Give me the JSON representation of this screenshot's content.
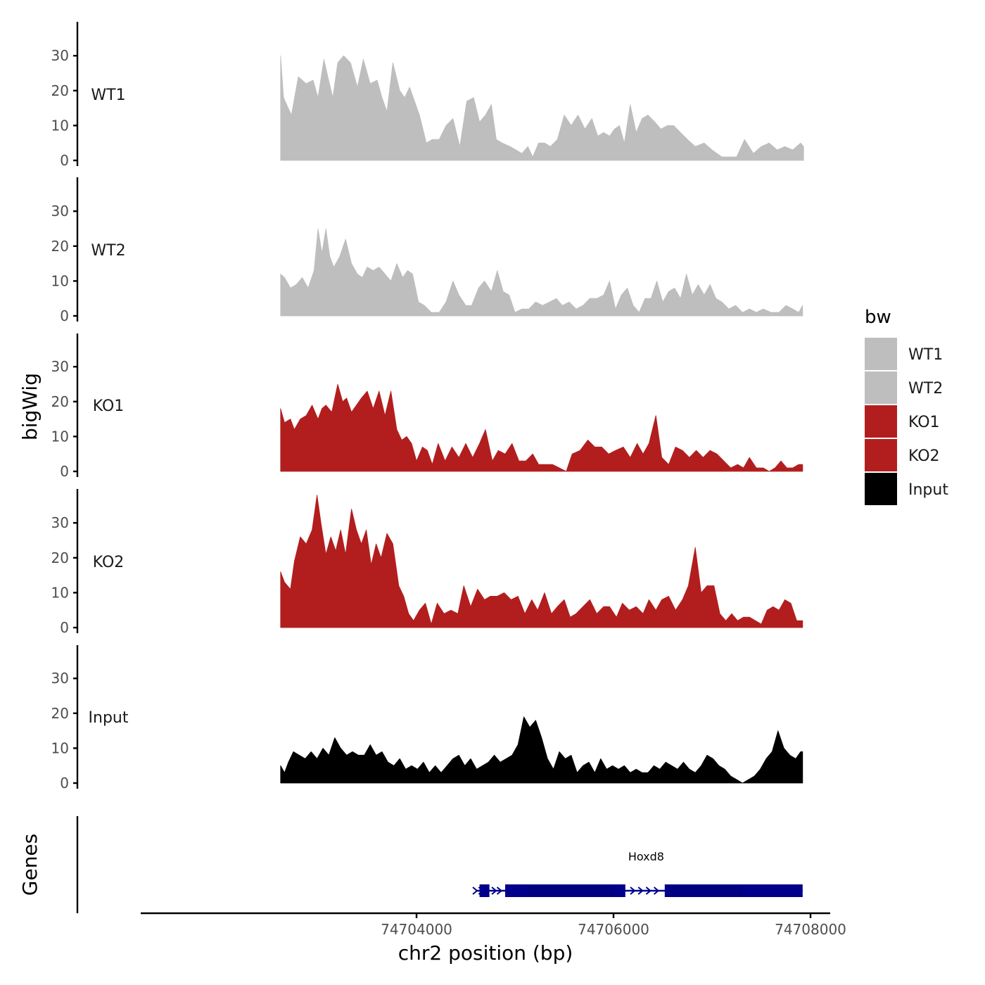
{
  "chart_data": {
    "type": "area",
    "title": "",
    "ylabel": "bigWig",
    "xlabel": "chr2 position (bp)",
    "genes_label": "Genes",
    "xlim": [
      74701200,
      74708200
    ],
    "ylim": [
      0,
      40
    ],
    "yticks": [
      0,
      10,
      20,
      30
    ],
    "xticks": [
      74704000,
      74706000,
      74708000
    ],
    "xtick_labels": [
      "74704000",
      "74706000",
      "74708000"
    ],
    "legend": {
      "title": "bw",
      "position": "right",
      "entries": [
        {
          "name": "WT1",
          "color": "#bebebe"
        },
        {
          "name": "WT2",
          "color": "#bebebe"
        },
        {
          "name": "KO1",
          "color": "#b21e1e"
        },
        {
          "name": "KO2",
          "color": "#b21e1e"
        },
        {
          "name": "Input",
          "color": "#000000"
        }
      ]
    },
    "series": [
      {
        "name": "WT1",
        "color": "#bebebe",
        "x": [
          74702620,
          74702650,
          74702730,
          74702800,
          74702880,
          74702950,
          74703000,
          74703060,
          74703100,
          74703150,
          74703200,
          74703260,
          74703330,
          74703400,
          74703460,
          74703530,
          74703600,
          74703650,
          74703700,
          74703760,
          74703830,
          74703880,
          74703930,
          74703980,
          74704030,
          74704100,
          74704160,
          74704230,
          74704300,
          74704370,
          74704440,
          74704510,
          74704580,
          74704640,
          74704700,
          74704760,
          74704810,
          74704870,
          74704950,
          74705010,
          74705070,
          74705130,
          74705180,
          74705240,
          74705300,
          74705360,
          74705430,
          74705500,
          74705570,
          74705640,
          74705710,
          74705780,
          74705840,
          74705900,
          74705960,
          74706010,
          74706060,
          74706110,
          74706170,
          74706230,
          74706290,
          74706350,
          74706420,
          74706480,
          74706550,
          74706610,
          74706680,
          74706750,
          74706830,
          74706920,
          74707000,
          74707100,
          74707180,
          74707250,
          74707330,
          74707420,
          74707500,
          74707580,
          74707660,
          74707740,
          74707820,
          74707900,
          74707930
        ],
        "y": [
          30,
          18,
          13,
          24,
          22,
          23,
          18,
          29,
          24,
          18,
          28,
          30,
          28,
          21,
          29,
          22,
          23,
          18,
          14,
          28,
          20,
          18,
          21,
          17,
          13,
          5,
          6,
          6,
          10,
          12,
          4,
          17,
          18,
          11,
          13,
          16,
          6,
          5,
          4,
          3,
          2,
          4,
          1,
          5,
          5,
          4,
          6,
          13,
          10,
          13,
          9,
          12,
          7,
          8,
          7,
          9,
          10,
          5,
          16,
          8,
          12,
          13,
          11,
          9,
          10,
          10,
          8,
          6,
          4,
          5,
          3,
          1,
          1,
          1,
          6,
          2,
          4,
          5,
          3,
          4,
          3,
          5,
          4
        ]
      },
      {
        "name": "WT2",
        "color": "#bebebe",
        "x": [
          74702620,
          74702660,
          74702720,
          74702780,
          74702840,
          74702900,
          74702960,
          74703000,
          74703040,
          74703080,
          74703120,
          74703160,
          74703220,
          74703280,
          74703340,
          74703400,
          74703450,
          74703500,
          74703560,
          74703620,
          74703680,
          74703740,
          74703800,
          74703860,
          74703910,
          74703960,
          74704020,
          74704080,
          74704150,
          74704230,
          74704300,
          74704370,
          74704430,
          74704500,
          74704560,
          74704630,
          74704690,
          74704760,
          74704820,
          74704880,
          74704940,
          74705000,
          74705070,
          74705140,
          74705210,
          74705280,
          74705350,
          74705420,
          74705480,
          74705550,
          74705620,
          74705690,
          74705760,
          74705830,
          74705900,
          74705960,
          74706020,
          74706080,
          74706140,
          74706200,
          74706260,
          74706320,
          74706380,
          74706440,
          74706500,
          74706560,
          74706620,
          74706680,
          74706740,
          74706800,
          74706860,
          74706920,
          74706980,
          74707040,
          74707100,
          74707170,
          74707240,
          74707310,
          74707380,
          74707450,
          74707520,
          74707600,
          74707680,
          74707750,
          74707820,
          74707880,
          74707920
        ],
        "y": [
          12,
          11,
          8,
          9,
          11,
          8,
          13,
          25,
          18,
          25,
          17,
          14,
          17,
          22,
          15,
          12,
          11,
          14,
          13,
          14,
          12,
          10,
          15,
          11,
          13,
          12,
          4,
          3,
          1,
          1,
          4,
          10,
          6,
          3,
          3,
          8,
          10,
          7,
          13,
          7,
          6,
          1,
          2,
          2,
          4,
          3,
          4,
          5,
          3,
          4,
          2,
          3,
          5,
          5,
          6,
          10,
          2,
          6,
          8,
          3,
          1,
          5,
          5,
          10,
          4,
          7,
          8,
          5,
          12,
          6,
          9,
          6,
          9,
          5,
          4,
          2,
          3,
          1,
          2,
          1,
          2,
          1,
          1,
          3,
          2,
          1,
          3
        ]
      },
      {
        "name": "KO1",
        "color": "#b21e1e",
        "x": [
          74702620,
          74702660,
          74702720,
          74702760,
          74702820,
          74702880,
          74702940,
          74703000,
          74703040,
          74703080,
          74703140,
          74703200,
          74703250,
          74703290,
          74703340,
          74703390,
          74703440,
          74703500,
          74703560,
          74703620,
          74703680,
          74703740,
          74703800,
          74703850,
          74703900,
          74703950,
          74704000,
          74704060,
          74704110,
          74704160,
          74704220,
          74704290,
          74704360,
          74704430,
          74704500,
          74704570,
          74704640,
          74704700,
          74704770,
          74704830,
          74704900,
          74704970,
          74705040,
          74705110,
          74705180,
          74705240,
          74705310,
          74705380,
          74705450,
          74705520,
          74705580,
          74705660,
          74705740,
          74705810,
          74705880,
          74705950,
          74706020,
          74706100,
          74706170,
          74706240,
          74706300,
          74706360,
          74706430,
          74706490,
          74706560,
          74706630,
          74706700,
          74706770,
          74706840,
          74706910,
          74706980,
          74707050,
          74707120,
          74707190,
          74707260,
          74707320,
          74707380,
          74707450,
          74707520,
          74707580,
          74707640,
          74707700,
          74707760,
          74707820,
          74707880,
          74707920
        ],
        "y": [
          18,
          14,
          15,
          12,
          15,
          16,
          19,
          15,
          18,
          19,
          17,
          25,
          20,
          21,
          17,
          19,
          21,
          23,
          18,
          23,
          16,
          23,
          12,
          9,
          10,
          8,
          3,
          7,
          6,
          2,
          8,
          3,
          7,
          4,
          8,
          4,
          8,
          12,
          3,
          6,
          5,
          8,
          3,
          3,
          5,
          2,
          2,
          2,
          1,
          0,
          5,
          6,
          9,
          7,
          7,
          5,
          6,
          7,
          4,
          8,
          5,
          8,
          16,
          4,
          2,
          7,
          6,
          4,
          6,
          4,
          6,
          5,
          3,
          1,
          2,
          1,
          4,
          1,
          1,
          0,
          1,
          3,
          1,
          1,
          2,
          2
        ]
      },
      {
        "name": "KO2",
        "color": "#b21e1e",
        "x": [
          74702620,
          74702660,
          74702720,
          74702760,
          74702820,
          74702880,
          74702940,
          74702990,
          74703030,
          74703080,
          74703130,
          74703180,
          74703230,
          74703280,
          74703340,
          74703390,
          74703440,
          74703490,
          74703540,
          74703590,
          74703640,
          74703700,
          74703760,
          74703820,
          74703870,
          74703920,
          74703970,
          74704030,
          74704090,
          74704150,
          74704210,
          74704280,
          74704350,
          74704420,
          74704480,
          74704550,
          74704620,
          74704690,
          74704750,
          74704820,
          74704890,
          74704960,
          74705030,
          74705100,
          74705170,
          74705230,
          74705300,
          74705370,
          74705430,
          74705500,
          74705560,
          74705620,
          74705690,
          74705760,
          74705830,
          74705900,
          74705960,
          74706030,
          74706090,
          74706160,
          74706230,
          74706300,
          74706360,
          74706430,
          74706490,
          74706560,
          74706630,
          74706700,
          74706760,
          74706830,
          74706890,
          74706950,
          74707020,
          74707080,
          74707140,
          74707200,
          74707260,
          74707320,
          74707380,
          74707440,
          74707500,
          74707560,
          74707620,
          74707680,
          74707740,
          74707800,
          74707860,
          74707920
        ],
        "y": [
          16,
          13,
          11,
          19,
          26,
          24,
          28,
          38,
          30,
          21,
          26,
          22,
          28,
          21,
          34,
          28,
          24,
          28,
          18,
          24,
          20,
          27,
          24,
          12,
          9,
          4,
          2,
          5,
          7,
          1,
          7,
          4,
          5,
          4,
          12,
          6,
          11,
          8,
          9,
          9,
          10,
          8,
          9,
          4,
          8,
          5,
          10,
          4,
          6,
          8,
          3,
          4,
          6,
          8,
          4,
          6,
          6,
          3,
          7,
          5,
          6,
          4,
          8,
          5,
          8,
          9,
          5,
          8,
          12,
          23,
          10,
          12,
          12,
          4,
          2,
          4,
          2,
          3,
          3,
          2,
          1,
          5,
          6,
          5,
          8,
          7,
          2,
          2
        ]
      },
      {
        "name": "Input",
        "color": "#000000",
        "x": [
          74702620,
          74702660,
          74702700,
          74702750,
          74702810,
          74702870,
          74702930,
          74702990,
          74703050,
          74703110,
          74703170,
          74703230,
          74703290,
          74703350,
          74703410,
          74703470,
          74703530,
          74703590,
          74703650,
          74703710,
          74703770,
          74703830,
          74703890,
          74703950,
          74704010,
          74704070,
          74704130,
          74704190,
          74704250,
          74704310,
          74704370,
          74704430,
          74704490,
          74704550,
          74704610,
          74704670,
          74704730,
          74704790,
          74704850,
          74704910,
          74704970,
          74705030,
          74705090,
          74705150,
          74705210,
          74705270,
          74705330,
          74705390,
          74705450,
          74705510,
          74705570,
          74705630,
          74705690,
          74705750,
          74705810,
          74705870,
          74705930,
          74705990,
          74706050,
          74706110,
          74706170,
          74706230,
          74706290,
          74706350,
          74706410,
          74706470,
          74706530,
          74706590,
          74706650,
          74706710,
          74706770,
          74706830,
          74706890,
          74706950,
          74707010,
          74707070,
          74707130,
          74707190,
          74707250,
          74707310,
          74707370,
          74707430,
          74707490,
          74707550,
          74707610,
          74707670,
          74707730,
          74707790,
          74707850,
          74707900,
          74707920
        ],
        "y": [
          5,
          3,
          6,
          9,
          8,
          7,
          9,
          7,
          10,
          8,
          13,
          10,
          8,
          9,
          8,
          8,
          11,
          8,
          9,
          6,
          5,
          7,
          4,
          5,
          4,
          6,
          3,
          5,
          3,
          5,
          7,
          8,
          5,
          7,
          4,
          5,
          6,
          8,
          6,
          7,
          8,
          11,
          19,
          16,
          18,
          13,
          7,
          4,
          9,
          7,
          8,
          3,
          5,
          6,
          3,
          7,
          4,
          5,
          4,
          5,
          3,
          4,
          3,
          3,
          5,
          4,
          6,
          5,
          4,
          6,
          4,
          3,
          5,
          8,
          7,
          5,
          4,
          2,
          1,
          0,
          1,
          2,
          4,
          7,
          9,
          15,
          10,
          8,
          7,
          9,
          9
        ]
      }
    ],
    "genes": [
      {
        "name": "Hoxd8",
        "start": 74704600,
        "end": 74707920,
        "strand": "+",
        "exons": [
          [
            74704640,
            74704740
          ],
          [
            74704900,
            74706120
          ],
          [
            74706520,
            74707920
          ]
        ],
        "thick": [
          [
            74705150,
            74706000
          ],
          [
            74706550,
            74707300
          ]
        ]
      }
    ]
  }
}
